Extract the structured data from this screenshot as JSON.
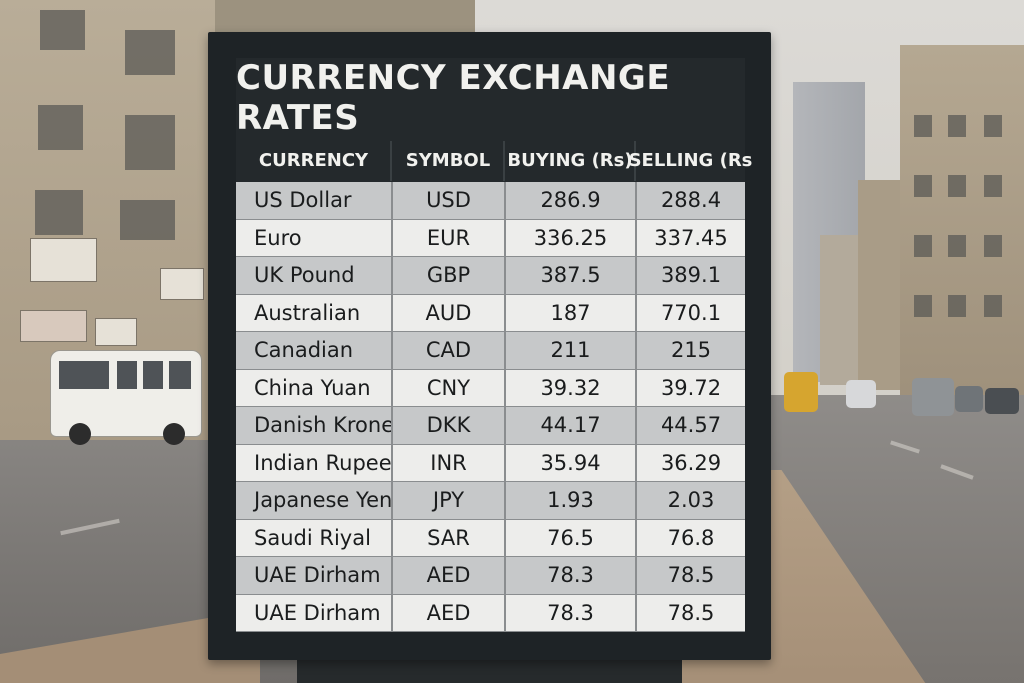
{
  "board": {
    "title": "CURRENCY EXCHANGE RATES",
    "headers": {
      "currency": "CURRENCY",
      "symbol": "SYMBOL",
      "buying": "BUYING (Rs)",
      "selling": "SELLING (Rs"
    },
    "rows": [
      {
        "currency": "US Dollar",
        "symbol": "USD",
        "buying": "286.9",
        "selling": "288.4"
      },
      {
        "currency": "Euro",
        "symbol": "EUR",
        "buying": "336.25",
        "selling": "337.45"
      },
      {
        "currency": "UK Pound",
        "symbol": "GBP",
        "buying": "387.5",
        "selling": "389.1"
      },
      {
        "currency": "Australian",
        "symbol": "AUD",
        "buying": "187",
        "selling": "770.1"
      },
      {
        "currency": "Canadian",
        "symbol": "CAD",
        "buying": "211",
        "selling": "215"
      },
      {
        "currency": "China Yuan",
        "symbol": "CNY",
        "buying": "39.32",
        "selling": "39.72"
      },
      {
        "currency": "Danish Krone",
        "symbol": "DKK",
        "buying": "44.17",
        "selling": "44.57"
      },
      {
        "currency": "Indian Rupee",
        "symbol": "INR",
        "buying": "35.94",
        "selling": "36.29"
      },
      {
        "currency": "Japanese Yen",
        "symbol": "JPY",
        "buying": "1.93",
        "selling": "2.03"
      },
      {
        "currency": "Saudi Riyal",
        "symbol": "SAR",
        "buying": "76.5",
        "selling": "76.8"
      },
      {
        "currency": "UAE Dirham",
        "symbol": "AED",
        "buying": "78.3",
        "selling": "78.5"
      },
      {
        "currency": "UAE Dirham",
        "symbol": "AED",
        "buying": "78.3",
        "selling": "78.5"
      }
    ]
  },
  "colors": {
    "board_frame": "#1e2326",
    "header_text": "#f1f1ee",
    "row_light": "#ededeb",
    "row_dark": "#c6c8c9"
  }
}
